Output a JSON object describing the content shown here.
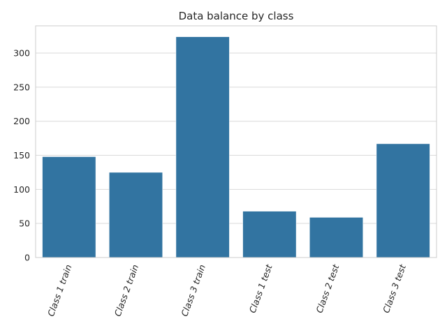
{
  "chart_data": {
    "type": "bar",
    "title": "Data balance by class",
    "xlabel": "",
    "ylabel": "",
    "categories": [
      "Class 1 train",
      "Class 2 train",
      "Class 3 train",
      "Class 1 test",
      "Class 2 test",
      "Class 3 test"
    ],
    "values": [
      148,
      125,
      324,
      68,
      59,
      167
    ],
    "ylim": [
      0,
      340
    ],
    "yticks": [
      0,
      50,
      100,
      150,
      200,
      250,
      300
    ],
    "grid": true,
    "legend": "none",
    "bar_color": "#3274a1",
    "xtick_rotation": "70 degrees, italic"
  }
}
